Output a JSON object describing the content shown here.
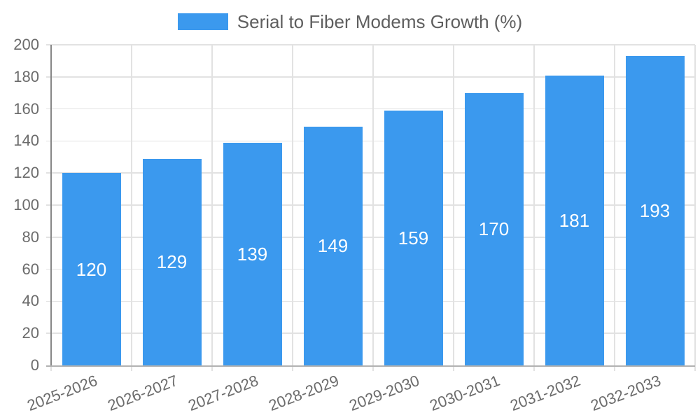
{
  "legend": {
    "label": "Serial to Fiber Modems Growth (%)"
  },
  "colors": {
    "bar": "#3b99ee",
    "bar_label": "#ffffff",
    "grid": "#e2e2e2",
    "y_axis": "#878787",
    "x_axis": "#b2b2b2",
    "tick_label": "#6b6b6b",
    "legend_label": "#5f5f5f",
    "background": "#ffffff"
  },
  "chart_data": {
    "type": "bar",
    "title": "Serial to Fiber Modems Growth (%)",
    "categories": [
      "2025-2026",
      "2026-2027",
      "2027-2028",
      "2028-2029",
      "2029-2030",
      "2030-2031",
      "2031-2032",
      "2032-2033"
    ],
    "values": [
      120,
      129,
      139,
      149,
      159,
      170,
      181,
      193
    ],
    "bar_value_labels": [
      120,
      129,
      139,
      149,
      159,
      170,
      181,
      193
    ],
    "xlabel": "",
    "ylabel": "",
    "ylim": [
      0,
      200
    ],
    "ytick_step": 20,
    "yticks": [
      0,
      20,
      40,
      60,
      80,
      100,
      120,
      140,
      160,
      180,
      200
    ],
    "grid": true,
    "legend_position": "top",
    "value_label_position": "center-inside-bar",
    "x_label_rotation_deg": -21
  }
}
